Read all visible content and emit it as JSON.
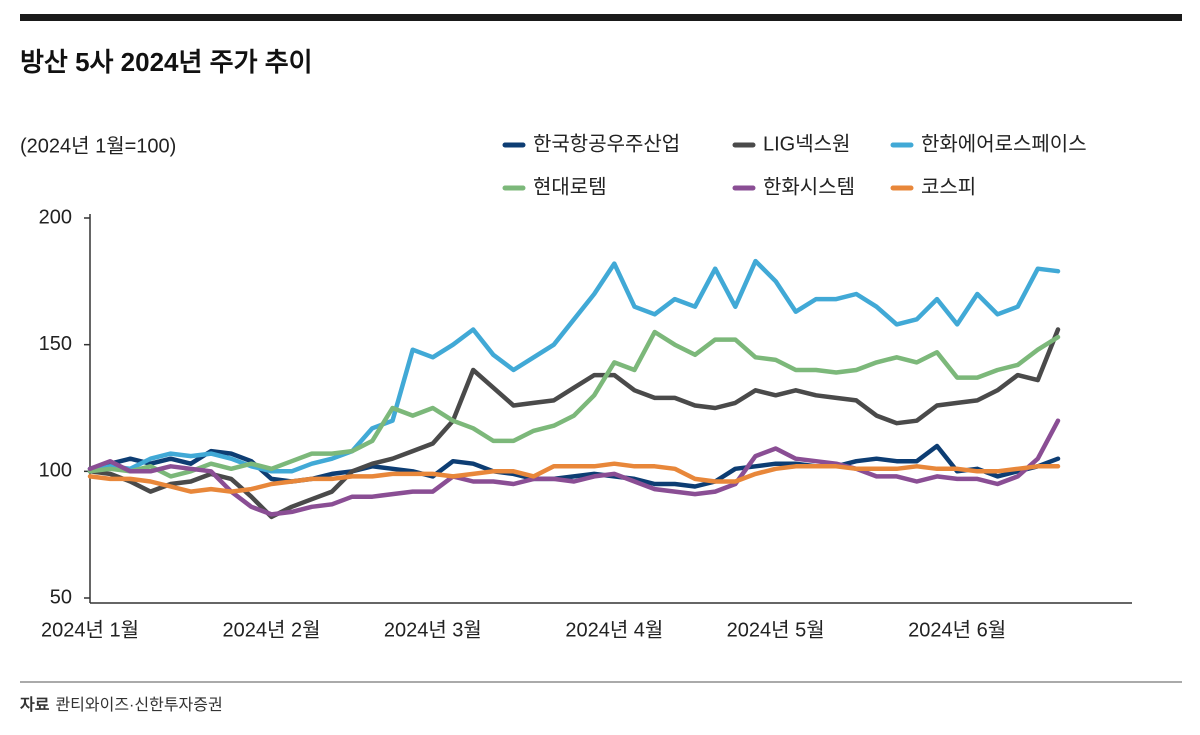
{
  "chart_data": {
    "type": "line",
    "title": "방산 5사 2024년 주가 추이",
    "subtitle": "(2024년 1월=100)",
    "source_label": "자료",
    "source": "콴티와이즈·신한투자증권",
    "categories": [
      "2024년 1월",
      null,
      null,
      null,
      null,
      null,
      null,
      null,
      null,
      "2024년 2월",
      null,
      null,
      null,
      null,
      null,
      null,
      null,
      "2024년 3월",
      null,
      null,
      null,
      null,
      null,
      null,
      null,
      null,
      "2024년 4월",
      null,
      null,
      null,
      null,
      null,
      null,
      null,
      "2024년 5월",
      null,
      null,
      null,
      null,
      null,
      null,
      null,
      null,
      "2024년 6월",
      null,
      null,
      null,
      null,
      null
    ],
    "ylim": [
      50,
      200
    ],
    "yticks": [
      50,
      100,
      150,
      200
    ],
    "grid": false,
    "series": [
      {
        "name": "한국항공우주산업",
        "color": "#0d3d73",
        "values": [
          101,
          103,
          105,
          103,
          105,
          103,
          108,
          107,
          104,
          97,
          96,
          97,
          99,
          100,
          102,
          101,
          100,
          98,
          104,
          103,
          100,
          99,
          97,
          97,
          98,
          99,
          98,
          97,
          95,
          95,
          94,
          96,
          101,
          102,
          103,
          103,
          102,
          102,
          104,
          105,
          104,
          104,
          110,
          100,
          101,
          98,
          100,
          102,
          105
        ]
      },
      {
        "name": "LIG넥스원",
        "color": "#4a4a4a",
        "values": [
          100,
          99,
          96,
          92,
          95,
          96,
          99,
          97,
          90,
          82,
          86,
          89,
          92,
          100,
          103,
          105,
          108,
          111,
          120,
          140,
          133,
          126,
          127,
          128,
          133,
          138,
          138,
          132,
          129,
          129,
          126,
          125,
          127,
          132,
          130,
          132,
          130,
          129,
          128,
          122,
          119,
          120,
          126,
          127,
          128,
          132,
          138,
          136,
          156
        ]
      },
      {
        "name": "한화에어로스페이스",
        "color": "#41a9d6",
        "values": [
          100,
          102,
          101,
          105,
          107,
          106,
          107,
          105,
          102,
          100,
          100,
          103,
          105,
          108,
          117,
          120,
          148,
          145,
          150,
          156,
          146,
          140,
          145,
          150,
          160,
          170,
          182,
          165,
          162,
          168,
          165,
          180,
          165,
          183,
          175,
          163,
          168,
          168,
          170,
          165,
          158,
          160,
          168,
          158,
          170,
          162,
          165,
          180,
          179
        ]
      },
      {
        "name": "현대로템",
        "color": "#7cb87a",
        "values": [
          100,
          101,
          100,
          102,
          98,
          100,
          103,
          101,
          103,
          101,
          104,
          107,
          107,
          108,
          112,
          125,
          122,
          125,
          120,
          117,
          112,
          112,
          116,
          118,
          122,
          130,
          143,
          140,
          155,
          150,
          146,
          152,
          152,
          145,
          144,
          140,
          140,
          139,
          140,
          143,
          145,
          143,
          147,
          137,
          137,
          140,
          142,
          148,
          153
        ]
      },
      {
        "name": "한화시스템",
        "color": "#8a4e94",
        "values": [
          101,
          104,
          100,
          100,
          102,
          101,
          100,
          92,
          86,
          83,
          84,
          86,
          87,
          90,
          90,
          91,
          92,
          92,
          98,
          96,
          96,
          95,
          97,
          97,
          96,
          98,
          99,
          96,
          93,
          92,
          91,
          92,
          95,
          106,
          109,
          105,
          104,
          103,
          101,
          98,
          98,
          96,
          98,
          97,
          97,
          95,
          98,
          105,
          120
        ]
      },
      {
        "name": "코스피",
        "color": "#e8873a",
        "values": [
          98,
          97,
          97,
          96,
          94,
          92,
          93,
          92,
          93,
          95,
          96,
          97,
          97,
          98,
          98,
          99,
          99,
          99,
          98,
          99,
          100,
          100,
          98,
          102,
          102,
          102,
          103,
          102,
          102,
          101,
          97,
          96,
          96,
          99,
          101,
          102,
          102,
          102,
          101,
          101,
          101,
          102,
          101,
          101,
          100,
          100,
          101,
          102,
          102
        ]
      }
    ]
  }
}
